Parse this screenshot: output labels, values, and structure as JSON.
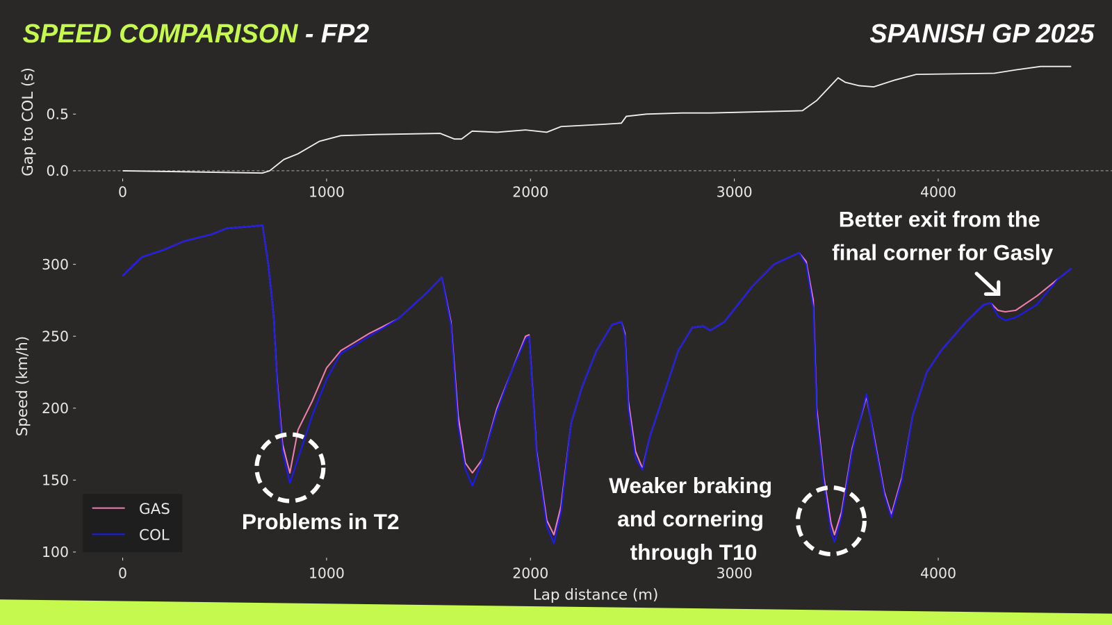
{
  "header": {
    "title_main": "SPEED COMPARISON",
    "title_session": " - FP2",
    "event": "SPANISH GP 2025"
  },
  "colors": {
    "accent": "#c6f94e",
    "background": "#2a2727",
    "gas": "#f07fb0",
    "col": "#1a1aff",
    "gap": "#f0f0f0"
  },
  "chart_data": [
    {
      "type": "line",
      "title": "",
      "xlabel": "",
      "ylabel": "Gap to COL (s)",
      "xlim": [
        -200,
        4760
      ],
      "ylim": [
        -0.02,
        1.0
      ],
      "xticks": [
        "0",
        "1000",
        "2000",
        "3000",
        "4000"
      ],
      "yticks": [
        "0.0",
        "0.5"
      ],
      "reference_line": 0,
      "series": [
        {
          "name": "Gap",
          "x": [
            0,
            686,
            721,
            791,
            860,
            965,
            1070,
            1244,
            1557,
            1627,
            1662,
            1714,
            1836,
            1976,
            2080,
            2150,
            2359,
            2446,
            2470,
            2568,
            2742,
            2882,
            3334,
            3404,
            3509,
            3544,
            3613,
            3683,
            3787,
            3892,
            4275,
            4380,
            4502,
            4652
          ],
          "y": [
            0.0,
            -0.02,
            0.0,
            0.1,
            0.15,
            0.26,
            0.31,
            0.32,
            0.33,
            0.28,
            0.28,
            0.35,
            0.34,
            0.36,
            0.34,
            0.39,
            0.41,
            0.42,
            0.48,
            0.5,
            0.51,
            0.51,
            0.53,
            0.62,
            0.82,
            0.78,
            0.75,
            0.74,
            0.8,
            0.85,
            0.86,
            0.89,
            0.92,
            0.92
          ]
        }
      ]
    },
    {
      "type": "line",
      "title": "",
      "xlabel": "Lap distance (m)",
      "ylabel": "Speed (km/h)",
      "xlim": [
        -200,
        4760
      ],
      "ylim": [
        98,
        330
      ],
      "xticks": [
        "0",
        "1000",
        "2000",
        "3000",
        "4000"
      ],
      "yticks": [
        "100",
        "150",
        "200",
        "250",
        "300"
      ],
      "legend": {
        "position": "lower-left",
        "entries": [
          "GAS",
          "COL"
        ]
      },
      "x": [
        0,
        94,
        200,
        300,
        440,
        510,
        686,
        714,
        740,
        756,
        784,
        820,
        860,
        930,
        1000,
        1070,
        1210,
        1350,
        1490,
        1565,
        1610,
        1645,
        1680,
        1715,
        1767,
        1836,
        1906,
        1976,
        1993,
        2030,
        2080,
        2115,
        2150,
        2200,
        2254,
        2324,
        2400,
        2446,
        2463,
        2480,
        2515,
        2550,
        2585,
        2655,
        2725,
        2794,
        2847,
        2882,
        2951,
        3090,
        3195,
        3317,
        3352,
        3387,
        3404,
        3439,
        3474,
        3491,
        3526,
        3578,
        3648,
        3683,
        3735,
        3770,
        3822,
        3875,
        3944,
        4014,
        4136,
        4223,
        4258,
        4293,
        4328,
        4380,
        4484,
        4589,
        4652
      ],
      "series": [
        {
          "name": "GAS",
          "values": [
            292,
            305,
            310,
            316,
            321,
            325,
            327,
            300,
            265,
            222,
            175,
            155,
            185,
            205,
            228,
            240,
            252,
            262,
            280,
            291,
            260,
            195,
            162,
            155,
            165,
            200,
            225,
            250,
            251,
            170,
            122,
            112,
            132,
            190,
            215,
            240,
            258,
            260,
            252,
            205,
            170,
            158,
            180,
            210,
            240,
            256,
            257,
            254,
            260,
            285,
            300,
            308,
            302,
            275,
            200,
            152,
            120,
            112,
            128,
            172,
            208,
            182,
            142,
            126,
            152,
            195,
            225,
            240,
            260,
            272,
            273,
            268,
            267,
            268,
            278,
            290,
            297
          ]
        },
        {
          "name": "COL",
          "values": [
            292,
            305,
            310,
            316,
            321,
            325,
            327,
            300,
            265,
            220,
            170,
            148,
            165,
            195,
            220,
            238,
            250,
            262,
            280,
            291,
            258,
            188,
            158,
            146,
            165,
            198,
            225,
            248,
            250,
            168,
            118,
            106,
            128,
            190,
            215,
            240,
            258,
            260,
            250,
            200,
            165,
            157,
            180,
            210,
            240,
            256,
            257,
            254,
            260,
            285,
            300,
            308,
            300,
            270,
            195,
            148,
            114,
            107,
            125,
            170,
            210,
            180,
            140,
            124,
            150,
            195,
            225,
            240,
            260,
            272,
            273,
            264,
            261,
            263,
            272,
            290,
            297
          ]
        }
      ],
      "annotations": [
        {
          "text": "Problems in T2",
          "x": 820,
          "y": 157
        },
        {
          "text_lines": [
            "Weaker braking",
            "and cornering",
            "through T10"
          ],
          "x": 3474,
          "y": 122
        },
        {
          "text_lines": [
            "Better exit from the",
            "final corner for Gasly"
          ],
          "x": 4310,
          "y": 275
        }
      ]
    }
  ]
}
